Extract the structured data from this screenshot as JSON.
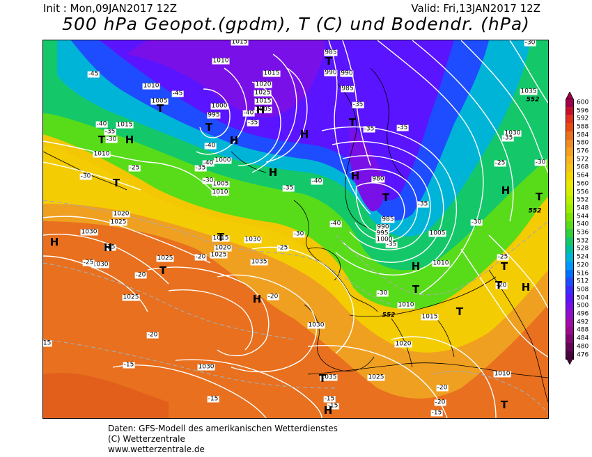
{
  "header": {
    "init_text": "Init : Mon,09JAN2017 12Z",
    "valid_text": "Valid: Fri,13JAN2017 12Z",
    "title": "500 hPa Geopot.(gpdm), T (C) und Bodendr. (hPa)"
  },
  "scale": {
    "labels": [
      "600",
      "596",
      "592",
      "588",
      "584",
      "580",
      "576",
      "572",
      "568",
      "564",
      "560",
      "556",
      "552",
      "548",
      "544",
      "540",
      "536",
      "532",
      "528",
      "524",
      "520",
      "516",
      "512",
      "508",
      "504",
      "500",
      "496",
      "492",
      "488",
      "484",
      "480",
      "476"
    ],
    "colors": [
      "#a0004a",
      "#c8102e",
      "#e0301e",
      "#e84a10",
      "#e8701e",
      "#f08a22",
      "#f4a020",
      "#f8b420",
      "#f4c418",
      "#f0d800",
      "#e8e800",
      "#d4ee00",
      "#b8f000",
      "#9cee00",
      "#7ce400",
      "#58dc1a",
      "#30d03a",
      "#14c86a",
      "#00c0a0",
      "#00b4d8",
      "#0098ff",
      "#0070ff",
      "#1e4cff",
      "#3a2cff",
      "#5a14ff",
      "#7a10e8",
      "#9010c8",
      "#a00ca8",
      "#9a0a8a",
      "#7e0870",
      "#620656",
      "#4a0440"
    ]
  },
  "pressure_labels": [
    "1015",
    "1010",
    "1015",
    "1010",
    "1005",
    "1020",
    "1025",
    "1015",
    "1005",
    "1000",
    "995",
    "1000",
    "1005",
    "1010",
    "1010",
    "1015",
    "985",
    "990",
    "990",
    "985",
    "980",
    "985",
    "990",
    "995",
    "1000",
    "1005",
    "1010",
    "1015",
    "1010",
    "1020",
    "1025",
    "1030",
    "1030",
    "1035",
    "1035",
    "1030",
    "1030",
    "1025",
    "1020",
    "1025",
    "1015",
    "1020",
    "1025",
    "1030",
    "1010",
    "1025",
    "1030",
    "1035"
  ],
  "temp_labels": [
    "-45",
    "-45",
    "-40",
    "-40",
    "-35",
    "-40",
    "-40",
    "-35",
    "-30",
    "-35",
    "-30",
    "-25",
    "-30",
    "-35",
    "-35",
    "-35",
    "-40",
    "-35",
    "-30",
    "-35",
    "-25",
    "-40",
    "-30",
    "-25",
    "-30",
    "-30",
    "-35",
    "-35",
    "-20",
    "-20",
    "-15",
    "-20",
    "-15",
    "-15",
    "-20",
    "-20",
    "-15",
    "-25",
    "-20",
    "-30",
    "-25",
    "-20",
    "-15",
    "-15",
    "-15"
  ],
  "system_labels": [
    "T",
    "T",
    "T",
    "T",
    "H",
    "H",
    "H",
    "T",
    "T",
    "H",
    "H",
    "T",
    "T",
    "H",
    "T",
    "H",
    "T",
    "T",
    "H",
    "H",
    "T",
    "T",
    "H",
    "T",
    "H",
    "T",
    "H",
    "T",
    "H"
  ],
  "height_labels": [
    "552",
    "552",
    "552"
  ],
  "footer": {
    "line1": "Daten: GFS-Modell des amerikanischen Wetterdienstes",
    "line2": "(C) Wetterzentrale",
    "line3": "www.wetterzentrale.de"
  }
}
